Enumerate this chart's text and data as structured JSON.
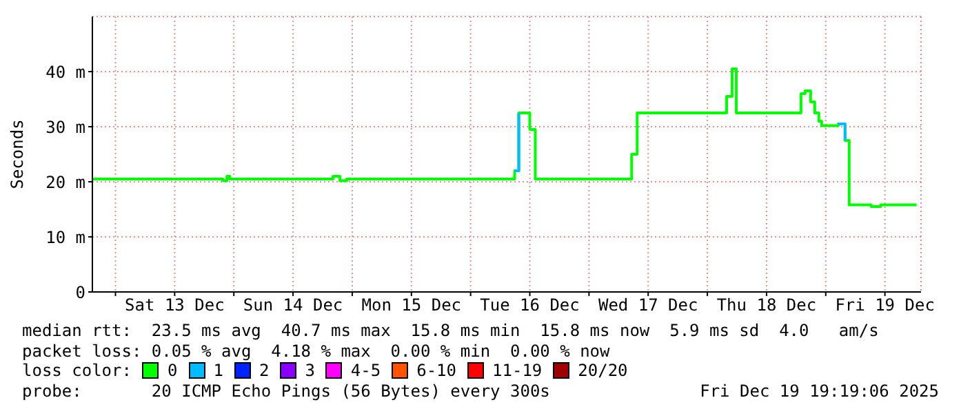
{
  "chart_data": {
    "type": "step",
    "ylabel": "Seconds",
    "legend_title": "loss color:",
    "legend": "bottom",
    "grid": true,
    "marker": "none",
    "x": [
      "2025-12-12T19:19",
      "2025-12-13T21:46",
      "2025-12-13T22:36",
      "2025-12-13T23:10",
      "2025-12-14T18:08",
      "2025-12-14T18:59",
      "2025-12-14T20:06",
      "2025-12-14T21:30",
      "2025-12-14T22:53",
      "2025-12-16T08:56",
      "2025-12-16T09:46",
      "2025-12-16T12:00",
      "2025-12-16T13:07",
      "2025-12-17T08:39",
      "2025-12-17T09:46",
      "2025-12-18T03:54",
      "2025-12-18T05:01",
      "2025-12-18T05:52",
      "2025-12-18T18:59",
      "2025-12-18T19:49",
      "2025-12-18T20:56",
      "2025-12-18T21:46",
      "2025-12-18T22:36",
      "2025-12-18T23:10",
      "2025-12-19T02:31",
      "2025-12-19T03:55",
      "2025-12-19T04:45",
      "2025-12-19T09:12",
      "2025-12-19T11:09",
      "2025-12-19T15:04",
      "2025-12-19T15:54",
      "2025-12-19T18:25"
    ],
    "series": [
      {
        "name": "0",
        "color": "#00ff00",
        "values": [
          20.5,
          20.2,
          21.0,
          20.5,
          20.5,
          20.5,
          21.0,
          20.2,
          20.5,
          22.0,
          32.5,
          29.5,
          20.5,
          25.0,
          32.5,
          35.5,
          40.5,
          32.5,
          36.0,
          36.5,
          34.5,
          32.5,
          31.0,
          30.2,
          30.5,
          27.5,
          15.8,
          15.5,
          15.8,
          15.8,
          15.8,
          15.8
        ]
      },
      {
        "name": "1",
        "color": "#00bbff",
        "values": [
          null,
          null,
          null,
          null,
          null,
          null,
          null,
          null,
          null,
          22.0,
          32.5,
          null,
          null,
          null,
          null,
          null,
          null,
          null,
          null,
          null,
          null,
          null,
          null,
          null,
          30.5,
          27.5,
          null,
          null,
          null,
          null,
          null,
          null
        ]
      },
      {
        "name": "2",
        "color": "#0022ff",
        "values": [
          null,
          null,
          null,
          null,
          null,
          null,
          null,
          null,
          null,
          null,
          null,
          null,
          null,
          null,
          null,
          null,
          null,
          null,
          null,
          null,
          null,
          null,
          null,
          null,
          null,
          null,
          null,
          null,
          null,
          null,
          null,
          null
        ]
      },
      {
        "name": "3",
        "color": "#8a00ff",
        "values": [
          null,
          null,
          null,
          null,
          null,
          null,
          null,
          null,
          null,
          null,
          null,
          null,
          null,
          null,
          null,
          null,
          null,
          null,
          null,
          null,
          null,
          null,
          null,
          null,
          null,
          null,
          null,
          null,
          null,
          null,
          null,
          null
        ]
      },
      {
        "name": "4-5",
        "color": "#ff00ff",
        "values": [
          null,
          null,
          null,
          null,
          null,
          null,
          null,
          null,
          null,
          null,
          null,
          null,
          null,
          null,
          null,
          null,
          null,
          null,
          null,
          null,
          null,
          null,
          null,
          null,
          null,
          null,
          null,
          null,
          null,
          null,
          null,
          null
        ]
      },
      {
        "name": "6-10",
        "color": "#ff5500",
        "values": [
          null,
          null,
          null,
          null,
          null,
          null,
          null,
          null,
          null,
          null,
          null,
          null,
          null,
          null,
          null,
          null,
          null,
          null,
          null,
          null,
          null,
          null,
          null,
          null,
          null,
          null,
          null,
          null,
          null,
          null,
          null,
          null
        ]
      },
      {
        "name": "11-19",
        "color": "#ff0000",
        "values": [
          null,
          null,
          null,
          null,
          null,
          null,
          null,
          null,
          null,
          null,
          null,
          null,
          null,
          null,
          null,
          null,
          null,
          null,
          null,
          null,
          null,
          null,
          null,
          null,
          null,
          null,
          null,
          null,
          null,
          null,
          null,
          null
        ]
      },
      {
        "name": "20/20",
        "color": "#a00000",
        "values": [
          null,
          null,
          null,
          null,
          null,
          null,
          null,
          null,
          null,
          null,
          null,
          null,
          null,
          null,
          null,
          null,
          null,
          null,
          null,
          null,
          null,
          null,
          null,
          null,
          null,
          null,
          null,
          null,
          null,
          null,
          null,
          null
        ]
      }
    ],
    "xlim": [
      "2025-12-12T19:19",
      "2025-12-19T19:19"
    ],
    "xticks": [
      {
        "value": "2025-12-13T00:00",
        "label": null
      },
      {
        "value": "2025-12-13T12:00",
        "label": "Sat 13 Dec"
      },
      {
        "value": "2025-12-14T00:00",
        "label": null
      },
      {
        "value": "2025-12-14T12:00",
        "label": "Sun 14 Dec"
      },
      {
        "value": "2025-12-15T00:00",
        "label": null
      },
      {
        "value": "2025-12-15T12:00",
        "label": "Mon 15 Dec"
      },
      {
        "value": "2025-12-16T00:00",
        "label": null
      },
      {
        "value": "2025-12-16T12:00",
        "label": "Tue 16 Dec"
      },
      {
        "value": "2025-12-17T00:00",
        "label": null
      },
      {
        "value": "2025-12-17T12:00",
        "label": "Wed 17 Dec"
      },
      {
        "value": "2025-12-18T00:00",
        "label": null
      },
      {
        "value": "2025-12-18T12:00",
        "label": "Thu 18 Dec"
      },
      {
        "value": "2025-12-19T00:00",
        "label": null
      },
      {
        "value": "2025-12-19T12:00",
        "label": "Fri 19 Dec"
      }
    ],
    "ylim": [
      0,
      50
    ],
    "yticks": [
      0,
      {
        "value": 10,
        "label": "10 m"
      },
      {
        "value": 20,
        "label": "20 m"
      },
      {
        "value": 30,
        "label": "30 m"
      },
      {
        "value": 40,
        "label": "40 m"
      }
    ],
    "annotations": [
      "median rtt:  23.5 ms avg  40.7 ms max  15.8 ms min  15.8 ms now  5.9 ms sd  4.0   am/s",
      "packet loss: 0.05 % avg  4.18 % max  0.00 % min  0.00 % now",
      "probe:       20 ICMP Echo Pings (56 Bytes) every 300s",
      "Fri Dec 19 19:19:06 2025"
    ]
  }
}
